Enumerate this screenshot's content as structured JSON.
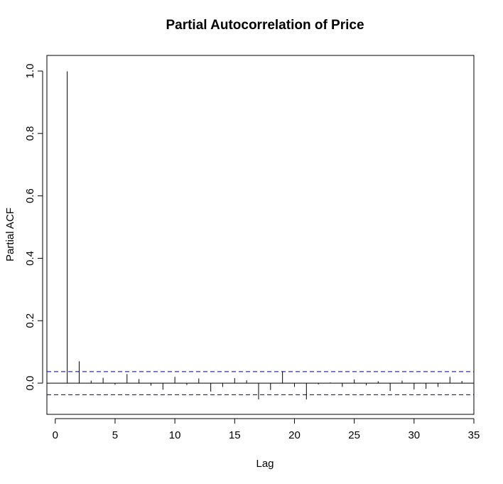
{
  "chart_data": {
    "type": "bar",
    "title": "Partial Autocorrelation of Price",
    "xlabel": "Lag",
    "ylabel": "Partial ACF",
    "xlim": [
      -0.7,
      35.0
    ],
    "ylim": [
      -0.1,
      1.05
    ],
    "x_ticks": [
      "0",
      "5",
      "10",
      "15",
      "20",
      "25",
      "30",
      "35"
    ],
    "y_ticks": [
      "0.0",
      "0.2",
      "0.4",
      "0.6",
      "0.8",
      "1.0"
    ],
    "confidence_bound": 0.037,
    "colors": {
      "bars": "#000000",
      "confidence": "#00008B",
      "zero_line": "#000000"
    },
    "lags": [
      1,
      2,
      3,
      4,
      5,
      6,
      7,
      8,
      9,
      10,
      11,
      12,
      13,
      14,
      15,
      16,
      17,
      18,
      19,
      20,
      21,
      22,
      23,
      24,
      25,
      26,
      27,
      28,
      29,
      30,
      31,
      32,
      33,
      34
    ],
    "values": [
      0.999,
      0.07,
      0.008,
      0.017,
      -0.005,
      0.029,
      0.013,
      -0.008,
      -0.021,
      0.02,
      -0.006,
      0.015,
      -0.027,
      -0.012,
      0.016,
      0.009,
      -0.052,
      -0.022,
      0.038,
      -0.012,
      -0.052,
      -0.004,
      0.002,
      -0.012,
      0.012,
      -0.007,
      0.006,
      -0.025,
      0.008,
      -0.02,
      -0.018,
      -0.012,
      0.02,
      0.007
    ]
  }
}
